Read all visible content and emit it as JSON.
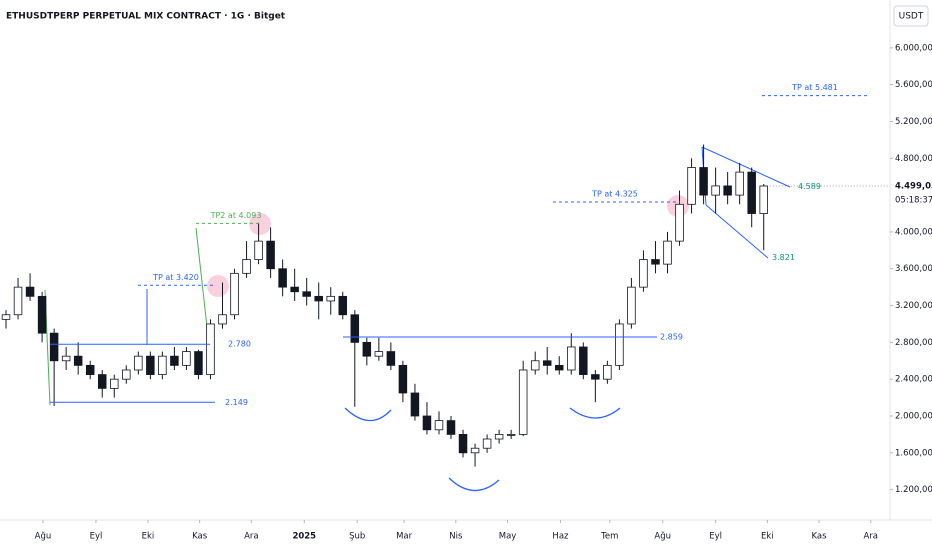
{
  "chart_data": {
    "type": "candlestick",
    "title": "ETHUSDTPERP PERPETUAL MIX CONTRACT · 1G · Bitget",
    "currency": "USDT",
    "up_color": "#ffffff",
    "down_color": "#131722",
    "ylim": [
      870,
      6520
    ],
    "yticks": [
      {
        "value": 1200,
        "label": "1.200,00"
      },
      {
        "value": 1600,
        "label": "1.600,00"
      },
      {
        "value": 2000,
        "label": "2.000,00"
      },
      {
        "value": 2400,
        "label": "2.400,00"
      },
      {
        "value": 2800,
        "label": "2.800,00"
      },
      {
        "value": 3200,
        "label": "3.200,00"
      },
      {
        "value": 3600,
        "label": "3.600,00"
      },
      {
        "value": 4000,
        "label": "4.000,00"
      },
      {
        "value": 4800,
        "label": "4.800,00"
      },
      {
        "value": 5200,
        "label": "5.200,00"
      },
      {
        "value": 5600,
        "label": "5.600,00"
      },
      {
        "value": 6000,
        "label": "6.000,00"
      }
    ],
    "xlim": [
      -0.5,
      73.5
    ],
    "xticks": [
      {
        "value": 3.07,
        "label": "Ağu"
      },
      {
        "value": 7.48,
        "label": "Eyl"
      },
      {
        "value": 11.8,
        "label": "Eki"
      },
      {
        "value": 16.1,
        "label": "Kas"
      },
      {
        "value": 20.4,
        "label": "Ara"
      },
      {
        "value": 24.8,
        "label": "2025"
      },
      {
        "value": 29.2,
        "label": "Şub"
      },
      {
        "value": 33.1,
        "label": "Mar"
      },
      {
        "value": 37.4,
        "label": "Nis"
      },
      {
        "value": 41.7,
        "label": "May"
      },
      {
        "value": 46.1,
        "label": "Haz"
      },
      {
        "value": 50.2,
        "label": "Tem"
      },
      {
        "value": 54.6,
        "label": "Ağu"
      },
      {
        "value": 59.0,
        "label": "Eyl"
      },
      {
        "value": 63.3,
        "label": "Eki"
      },
      {
        "value": 67.6,
        "label": "Kas"
      },
      {
        "value": 71.9,
        "label": "Ara"
      }
    ],
    "open": [
      3050,
      3100,
      3400,
      3300,
      2900,
      2600,
      2650,
      2550,
      2450,
      2300,
      2400,
      2500,
      2650,
      2450,
      2650,
      2550,
      2700,
      2450,
      3000,
      3100,
      3550,
      3700,
      3900,
      3600,
      3400,
      3350,
      3300,
      3250,
      3300,
      3100,
      2800,
      2650,
      2700,
      2550,
      2250,
      2000,
      1850,
      1950,
      1800,
      1600,
      1650,
      1750,
      1800,
      1800,
      2500,
      2600,
      2550,
      2500,
      2750,
      2450,
      2400,
      2550,
      3000,
      3400,
      3700,
      3650,
      3900,
      4300,
      4700,
      4400,
      4500,
      4400,
      4650,
      4200
    ],
    "high": [
      3150,
      3500,
      3550,
      3350,
      2950,
      2750,
      2800,
      2600,
      2500,
      2450,
      2550,
      2700,
      2700,
      2700,
      2750,
      2750,
      2720,
      3050,
      3450,
      3600,
      3900,
      4100,
      4050,
      3700,
      3600,
      3500,
      3450,
      3400,
      3350,
      3150,
      2850,
      2850,
      2800,
      2600,
      2350,
      2150,
      2050,
      2000,
      1850,
      1700,
      1800,
      1850,
      1850,
      2600,
      2700,
      2750,
      2650,
      2900,
      2800,
      2500,
      2600,
      3050,
      3500,
      3800,
      3900,
      4000,
      4450,
      4800,
      4950,
      4700,
      4650,
      4750,
      4700,
      4520
    ],
    "low": [
      2950,
      3050,
      3250,
      2800,
      2110,
      2500,
      2450,
      2400,
      2200,
      2200,
      2350,
      2450,
      2400,
      2400,
      2500,
      2500,
      2400,
      2400,
      2950,
      3050,
      3500,
      3650,
      3500,
      3300,
      3250,
      3200,
      3050,
      3100,
      3050,
      2100,
      2550,
      2600,
      2500,
      2150,
      1950,
      1800,
      1800,
      1750,
      1550,
      1450,
      1600,
      1700,
      1750,
      1780,
      2450,
      2450,
      2450,
      2450,
      2400,
      2150,
      2350,
      2500,
      2950,
      3350,
      3550,
      3550,
      3850,
      4200,
      4300,
      4200,
      4300,
      4300,
      4050,
      3800
    ],
    "close": [
      3100,
      3400,
      3300,
      2900,
      2600,
      2650,
      2550,
      2450,
      2300,
      2400,
      2500,
      2650,
      2450,
      2650,
      2550,
      2700,
      2450,
      3000,
      3100,
      3550,
      3700,
      3900,
      3600,
      3400,
      3350,
      3300,
      3250,
      3300,
      3100,
      2800,
      2650,
      2700,
      2550,
      2250,
      2000,
      1850,
      1950,
      1800,
      1600,
      1650,
      1750,
      1800,
      1800,
      2500,
      2600,
      2550,
      2500,
      2750,
      2450,
      2400,
      2550,
      3000,
      3400,
      3700,
      3650,
      3900,
      4300,
      4700,
      4400,
      4500,
      4400,
      4650,
      4200,
      4499.03
    ],
    "price_tag": {
      "value": 4499.03,
      "label": "4.499,03"
    },
    "countdown": "05:18:37",
    "levels": [
      {
        "label": "2.780",
        "value": 2780,
        "color": "#2962ff",
        "dashed": false
      },
      {
        "label": "2.149",
        "value": 2149,
        "color": "#2962ff",
        "dashed": false
      },
      {
        "label": "TP at 3.420",
        "value": 3420,
        "color": "#2962ff",
        "dashed": true
      },
      {
        "label": "TP2 at 4.093",
        "value": 4093,
        "color": "#4caf50",
        "dashed": true
      },
      {
        "label": "2.859",
        "value": 2859,
        "color": "#2962ff",
        "dashed": false
      },
      {
        "label": "TP at 4.325",
        "value": 4325,
        "color": "#2962ff",
        "dashed": true
      },
      {
        "label": "TP at 5.481",
        "value": 5481,
        "color": "#2962ff",
        "dashed": true
      }
    ],
    "wedge_labels": [
      {
        "label": "4.589",
        "value": 4589,
        "color": "#089981"
      },
      {
        "label": "3.821",
        "value": 3821,
        "color": "#089981"
      }
    ]
  }
}
